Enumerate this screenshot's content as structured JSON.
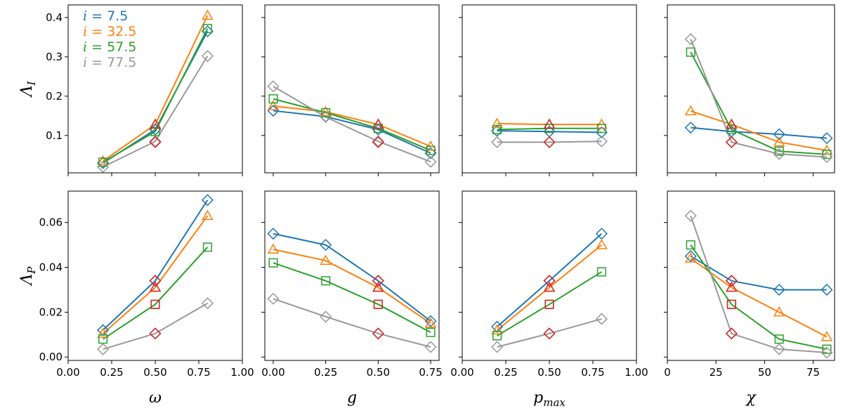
{
  "chart_data": [
    {
      "type": "line",
      "row": 0,
      "col": 0,
      "xlim": [
        0,
        1
      ],
      "ylim": [
        0.005,
        0.432
      ],
      "xticks": [
        0.0,
        0.25,
        0.5,
        0.75,
        1.0
      ],
      "yticks": [
        0.1,
        0.2,
        0.3,
        0.4
      ],
      "ytick_labels": [
        "0.1",
        "0.2",
        "0.3",
        "0.4"
      ],
      "xlabel": "",
      "ylabel": "Λ_I",
      "x": [
        0.2,
        0.5,
        0.8
      ],
      "series": [
        {
          "values": [
            0.03,
            0.115,
            0.365
          ]
        },
        {
          "values": [
            0.035,
            0.128,
            0.405
          ]
        },
        {
          "values": [
            0.032,
            0.11,
            0.372
          ]
        },
        {
          "values": [
            0.02,
            0.085,
            0.302
          ]
        }
      ],
      "red_points": [
        {
          "x": 0.5,
          "y": 0.128,
          "m": "tri"
        },
        {
          "x": 0.5,
          "y": 0.083,
          "m": "dia"
        }
      ]
    },
    {
      "type": "line",
      "row": 0,
      "col": 1,
      "xlim": [
        -0.04,
        0.79
      ],
      "ylim": [
        0.005,
        0.432
      ],
      "xticks": [
        0.0,
        0.25,
        0.5,
        0.75
      ],
      "yticks": [
        0.1,
        0.2,
        0.3,
        0.4
      ],
      "x": [
        0.0,
        0.25,
        0.5,
        0.75
      ],
      "series": [
        {
          "values": [
            0.163,
            0.148,
            0.115,
            0.055
          ]
        },
        {
          "values": [
            0.175,
            0.16,
            0.128,
            0.072
          ]
        },
        {
          "values": [
            0.193,
            0.158,
            0.118,
            0.062
          ]
        },
        {
          "values": [
            0.225,
            0.147,
            0.085,
            0.033
          ]
        }
      ],
      "red_points": [
        {
          "x": 0.5,
          "y": 0.128,
          "m": "tri"
        },
        {
          "x": 0.5,
          "y": 0.083,
          "m": "dia"
        }
      ]
    },
    {
      "type": "line",
      "row": 0,
      "col": 2,
      "xlim": [
        0,
        1
      ],
      "ylim": [
        0.005,
        0.432
      ],
      "xticks": [
        0.0,
        0.25,
        0.5,
        0.75,
        1.0
      ],
      "yticks": [
        0.1,
        0.2,
        0.3,
        0.4
      ],
      "x": [
        0.2,
        0.5,
        0.8
      ],
      "series": [
        {
          "values": [
            0.112,
            0.11,
            0.108
          ]
        },
        {
          "values": [
            0.13,
            0.128,
            0.128
          ]
        },
        {
          "values": [
            0.115,
            0.118,
            0.118
          ]
        },
        {
          "values": [
            0.083,
            0.083,
            0.085
          ]
        }
      ],
      "red_points": [
        {
          "x": 0.5,
          "y": 0.128,
          "m": "tri"
        },
        {
          "x": 0.5,
          "y": 0.083,
          "m": "dia"
        }
      ]
    },
    {
      "type": "line",
      "row": 0,
      "col": 3,
      "xlim": [
        0,
        86
      ],
      "ylim": [
        0.005,
        0.432
      ],
      "xticks": [
        0,
        25,
        50,
        75
      ],
      "yticks": [
        0.1,
        0.2,
        0.3,
        0.4
      ],
      "x": [
        12,
        33,
        57.5,
        82
      ],
      "series": [
        {
          "values": [
            0.12,
            0.11,
            0.103,
            0.093
          ]
        },
        {
          "values": [
            0.162,
            0.128,
            0.083,
            0.062
          ]
        },
        {
          "values": [
            0.312,
            0.115,
            0.06,
            0.052
          ]
        },
        {
          "values": [
            0.345,
            0.083,
            0.053,
            0.045
          ]
        }
      ],
      "red_points": [
        {
          "x": 33,
          "y": 0.128,
          "m": "tri"
        },
        {
          "x": 33,
          "y": 0.083,
          "m": "dia"
        }
      ]
    },
    {
      "type": "line",
      "row": 1,
      "col": 0,
      "xlim": [
        0,
        1
      ],
      "ylim": [
        -0.0015,
        0.074
      ],
      "xticks": [
        0.0,
        0.25,
        0.5,
        0.75,
        1.0
      ],
      "xtick_labels": [
        "0.00",
        "0.25",
        "0.50",
        "0.75",
        "1.00"
      ],
      "yticks": [
        0.0,
        0.02,
        0.04,
        0.06
      ],
      "ytick_labels": [
        "0.00",
        "0.02",
        "0.04",
        "0.06"
      ],
      "xlabel": "ω",
      "ylabel": "Λ_P",
      "x": [
        0.2,
        0.5,
        0.8
      ],
      "series": [
        {
          "values": [
            0.012,
            0.034,
            0.07
          ]
        },
        {
          "values": [
            0.0105,
            0.031,
            0.063
          ]
        },
        {
          "values": [
            0.008,
            0.0235,
            0.049
          ]
        },
        {
          "values": [
            0.0035,
            0.0105,
            0.024
          ]
        }
      ],
      "red_points": [
        {
          "x": 0.5,
          "y": 0.034,
          "m": "dia"
        },
        {
          "x": 0.5,
          "y": 0.031,
          "m": "tri"
        },
        {
          "x": 0.5,
          "y": 0.0235,
          "m": "sq"
        },
        {
          "x": 0.5,
          "y": 0.0105,
          "m": "dia"
        }
      ]
    },
    {
      "type": "line",
      "row": 1,
      "col": 1,
      "xlim": [
        -0.04,
        0.79
      ],
      "ylim": [
        -0.0015,
        0.074
      ],
      "xticks": [
        0.0,
        0.25,
        0.5,
        0.75
      ],
      "xtick_labels": [
        "0.00",
        "0.25",
        "0.50",
        "0.75"
      ],
      "yticks": [
        0.0,
        0.02,
        0.04,
        0.06
      ],
      "xlabel": "g",
      "x": [
        0.0,
        0.25,
        0.5,
        0.75
      ],
      "series": [
        {
          "values": [
            0.055,
            0.05,
            0.034,
            0.016
          ]
        },
        {
          "values": [
            0.048,
            0.043,
            0.031,
            0.015
          ]
        },
        {
          "values": [
            0.042,
            0.034,
            0.0235,
            0.011
          ]
        },
        {
          "values": [
            0.026,
            0.018,
            0.0105,
            0.0045
          ]
        }
      ],
      "red_points": [
        {
          "x": 0.5,
          "y": 0.034,
          "m": "dia"
        },
        {
          "x": 0.5,
          "y": 0.031,
          "m": "tri"
        },
        {
          "x": 0.5,
          "y": 0.0235,
          "m": "sq"
        },
        {
          "x": 0.5,
          "y": 0.0105,
          "m": "dia"
        }
      ]
    },
    {
      "type": "line",
      "row": 1,
      "col": 2,
      "xlim": [
        0,
        1
      ],
      "ylim": [
        -0.0015,
        0.074
      ],
      "xticks": [
        0.0,
        0.25,
        0.5,
        0.75,
        1.0
      ],
      "xtick_labels": [
        "0.00",
        "0.25",
        "0.50",
        "0.75",
        "1.00"
      ],
      "yticks": [
        0.0,
        0.02,
        0.04,
        0.06
      ],
      "xlabel": "p_max",
      "x": [
        0.2,
        0.5,
        0.8
      ],
      "series": [
        {
          "values": [
            0.0135,
            0.034,
            0.055
          ]
        },
        {
          "values": [
            0.012,
            0.031,
            0.05
          ]
        },
        {
          "values": [
            0.0095,
            0.0235,
            0.038
          ]
        },
        {
          "values": [
            0.0045,
            0.0105,
            0.017
          ]
        }
      ],
      "red_points": [
        {
          "x": 0.5,
          "y": 0.034,
          "m": "dia"
        },
        {
          "x": 0.5,
          "y": 0.031,
          "m": "tri"
        },
        {
          "x": 0.5,
          "y": 0.0235,
          "m": "sq"
        },
        {
          "x": 0.5,
          "y": 0.0105,
          "m": "dia"
        }
      ]
    },
    {
      "type": "line",
      "row": 1,
      "col": 3,
      "xlim": [
        0,
        86
      ],
      "ylim": [
        -0.0015,
        0.074
      ],
      "xticks": [
        0,
        25,
        50,
        75
      ],
      "xtick_labels": [
        "0",
        "25",
        "50",
        "75"
      ],
      "yticks": [
        0.0,
        0.02,
        0.04,
        0.06
      ],
      "xlabel": "χ",
      "x": [
        12,
        33,
        57.5,
        82
      ],
      "series": [
        {
          "values": [
            0.045,
            0.034,
            0.03,
            0.03
          ]
        },
        {
          "values": [
            0.044,
            0.031,
            0.02,
            0.009
          ]
        },
        {
          "values": [
            0.05,
            0.0235,
            0.008,
            0.0035
          ]
        },
        {
          "values": [
            0.063,
            0.0105,
            0.0035,
            0.002
          ]
        }
      ],
      "red_points": [
        {
          "x": 33,
          "y": 0.034,
          "m": "dia"
        },
        {
          "x": 33,
          "y": 0.031,
          "m": "tri"
        },
        {
          "x": 33,
          "y": 0.0235,
          "m": "sq"
        },
        {
          "x": 33,
          "y": 0.0105,
          "m": "dia"
        }
      ]
    }
  ],
  "legend": {
    "placement": "upper-left of first panel",
    "entries": [
      {
        "var": "i",
        "eq": " = 7.5",
        "color": "#1f77b4"
      },
      {
        "var": "i",
        "eq": " = 32.5",
        "color": "#ff7f0e"
      },
      {
        "var": "i",
        "eq": " = 57.5",
        "color": "#2ca02c"
      },
      {
        "var": "i",
        "eq": " = 77.5",
        "color": "#999999"
      }
    ]
  },
  "styles": {
    "colors": [
      "#1f77b4",
      "#ff7f0e",
      "#2ca02c",
      "#999999"
    ],
    "markers": [
      "diamond",
      "triangle",
      "square",
      "diamond"
    ],
    "highlight_color": "#d62728"
  }
}
